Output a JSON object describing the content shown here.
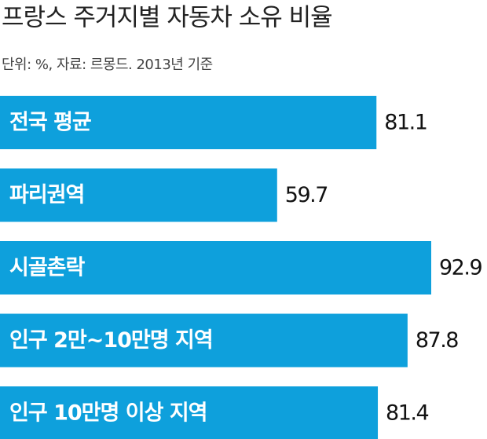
{
  "chart_data": {
    "type": "bar",
    "orientation": "horizontal",
    "title": "프랑스 주거지별 자동차 소유 비율",
    "subtitle": "단위: %, 자료: 르몽드. 2013년 기준",
    "categories": [
      "전국 평균",
      "파리권역",
      "시골촌락",
      "인구 2만~10만명 지역",
      "인구 10만명 이상 지역"
    ],
    "values": [
      81.1,
      59.7,
      92.9,
      87.8,
      81.4
    ],
    "color": "#0ea0dc"
  }
}
